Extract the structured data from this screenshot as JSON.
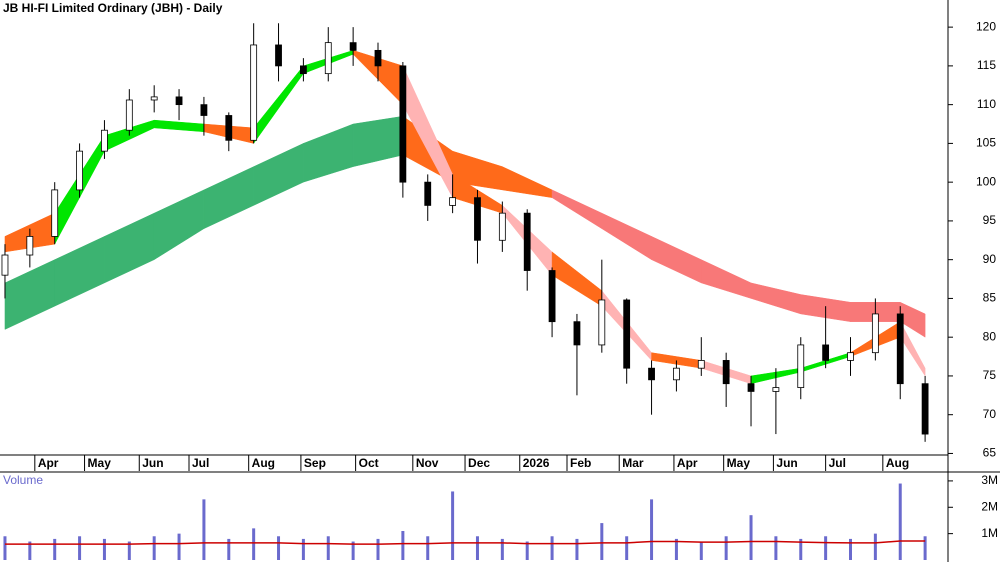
{
  "chart_data": [
    {
      "type": "candlestick",
      "title": "JB HI-FI Limited Ordinary (JBH) - Daily",
      "x": [
        0,
        10,
        20,
        30,
        40,
        50,
        60,
        70,
        80,
        90,
        100,
        110,
        120,
        130,
        140,
        150,
        160,
        170,
        180,
        190,
        200,
        210,
        220,
        230,
        240,
        250,
        260,
        270,
        280,
        290,
        300,
        310,
        320,
        330,
        340,
        350,
        360,
        370
      ],
      "open": [
        88,
        90.6,
        93,
        99,
        104,
        106.7,
        110.6,
        111,
        110,
        108.6,
        105.4,
        117.7,
        115,
        114,
        118,
        117,
        115,
        100,
        97,
        98,
        92.5,
        96,
        88.6,
        82,
        79,
        84.8,
        76,
        74.5,
        76,
        77,
        74,
        73,
        73.5,
        79,
        77,
        78,
        83,
        74
      ],
      "high": [
        92,
        94,
        100,
        105,
        108,
        112,
        112.5,
        112,
        111,
        109,
        120.5,
        120.5,
        116,
        120,
        120,
        118,
        115.5,
        101,
        101,
        99,
        97.5,
        96.5,
        89,
        83,
        90,
        85,
        77,
        77,
        80,
        78,
        75,
        76,
        80,
        84,
        80,
        85,
        84,
        75
      ],
      "low": [
        85,
        89,
        92,
        98,
        103,
        106,
        109,
        108,
        106,
        104,
        105,
        113,
        113,
        113,
        115,
        113,
        98,
        95,
        96,
        89.5,
        91,
        86,
        80,
        72.5,
        78,
        74,
        70,
        73,
        75,
        71,
        68.5,
        67.5,
        72,
        76,
        75,
        77,
        72,
        66.5
      ],
      "close": [
        90.6,
        93,
        99,
        104,
        106.7,
        110.6,
        111,
        110,
        108.6,
        105.4,
        117.7,
        115,
        114,
        118,
        117,
        115,
        100,
        97,
        98,
        92.5,
        96,
        88.6,
        82,
        79,
        84.8,
        76,
        74.5,
        76,
        77,
        74,
        73,
        73.5,
        79,
        77,
        78,
        83,
        74,
        67.5
      ],
      "bands": [
        {
          "x": [
            0,
            20,
            40,
            60,
            80,
            100,
            120,
            140,
            160,
            180,
            200,
            220,
            240,
            260,
            280,
            300,
            320,
            340,
            360,
            370
          ],
          "upper": [
            87,
            90,
            93,
            96,
            99,
            102,
            105,
            107.5,
            108.5,
            104,
            102,
            99,
            96,
            93,
            90,
            87,
            85.5,
            84.5,
            84.5,
            83
          ],
          "lower": [
            81,
            84,
            87,
            90,
            94,
            97,
            100,
            102,
            103.5,
            100,
            99,
            98,
            94,
            90,
            87,
            85,
            83,
            82,
            82,
            80
          ],
          "colors": [
            "#3cb371",
            "#3cb371",
            "#3cb371",
            "#3cb371",
            "#3cb371",
            "#3cb371",
            "#3cb371",
            "#3cb371",
            "#ff6a1a",
            "#ff6a1a",
            "#ff6a1a",
            "#f87878",
            "#f87878",
            "#f87878",
            "#f87878",
            "#f87878",
            "#f87878",
            "#f87878",
            "#f87878"
          ]
        },
        {
          "x": [
            0,
            20,
            40,
            60,
            80,
            100,
            120,
            140,
            160,
            180,
            200,
            220,
            240,
            260,
            280,
            300,
            320,
            340,
            360,
            370
          ],
          "upper": [
            93,
            96,
            106,
            108,
            107.5,
            107,
            115,
            117,
            115,
            101,
            97,
            91,
            86,
            78,
            77,
            75,
            76,
            78,
            82,
            76
          ],
          "lower": [
            91,
            92,
            104,
            107,
            106.5,
            105,
            114,
            116.5,
            110,
            98,
            96,
            88,
            84,
            77,
            76,
            74,
            75.5,
            77.5,
            80,
            75
          ],
          "colors": [
            "#ff6a1a",
            "#00e600",
            "#00e600",
            "#00e600",
            "#ff6a1a",
            "#00e600",
            "#00e600",
            "#ff6a1a",
            "#ffb3b3",
            "#ff6a1a",
            "#ffb3b3",
            "#ff6a1a",
            "#ffb3b3",
            "#ff6a1a",
            "#ffb3b3",
            "#00e600",
            "#00e600",
            "#ff6a1a",
            "#ffb3b3"
          ]
        }
      ],
      "xlim": [
        -2,
        378
      ],
      "xticks": [
        {
          "value": 12,
          "label": "Apr"
        },
        {
          "value": 32,
          "label": "May"
        },
        {
          "value": 54,
          "label": "Jun"
        },
        {
          "value": 74,
          "label": "Jul"
        },
        {
          "value": 98,
          "label": "Aug"
        },
        {
          "value": 119,
          "label": "Sep"
        },
        {
          "value": 141,
          "label": "Oct"
        },
        {
          "value": 164,
          "label": "Nov"
        },
        {
          "value": 185,
          "label": "Dec"
        },
        {
          "value": 207,
          "label": "2026"
        },
        {
          "value": 226,
          "label": "Feb"
        },
        {
          "value": 247,
          "label": "Mar"
        },
        {
          "value": 269,
          "label": "Apr"
        },
        {
          "value": 289,
          "label": "May"
        },
        {
          "value": 309,
          "label": "Jun"
        },
        {
          "value": 330,
          "label": "Jul"
        },
        {
          "value": 353,
          "label": "Aug"
        }
      ],
      "ylim": [
        64.8,
        123.5
      ],
      "yticks": [
        65,
        70,
        75,
        80,
        85,
        90,
        95,
        100,
        105,
        110,
        115,
        120
      ]
    },
    {
      "type": "bar",
      "title": "Volume",
      "color": "#6a6acd",
      "x": [
        0,
        10,
        20,
        30,
        40,
        50,
        60,
        70,
        80,
        90,
        100,
        110,
        120,
        130,
        140,
        150,
        160,
        170,
        180,
        190,
        200,
        210,
        220,
        230,
        240,
        250,
        260,
        270,
        280,
        290,
        300,
        310,
        320,
        330,
        340,
        350,
        360,
        370
      ],
      "values": [
        0.9,
        0.7,
        0.8,
        0.9,
        0.8,
        0.7,
        0.9,
        1.0,
        2.3,
        0.8,
        1.2,
        0.9,
        0.8,
        0.9,
        0.7,
        0.8,
        1.1,
        0.9,
        2.6,
        0.9,
        0.8,
        0.7,
        0.9,
        0.8,
        1.4,
        0.9,
        2.3,
        0.8,
        0.7,
        0.9,
        1.7,
        0.9,
        0.8,
        0.9,
        0.8,
        1.0,
        2.9,
        0.9
      ],
      "average": {
        "color": "#cc0000",
        "values": [
          0.6,
          0.6,
          0.6,
          0.6,
          0.6,
          0.6,
          0.62,
          0.62,
          0.65,
          0.65,
          0.65,
          0.65,
          0.62,
          0.62,
          0.6,
          0.6,
          0.62,
          0.62,
          0.65,
          0.65,
          0.65,
          0.62,
          0.62,
          0.62,
          0.65,
          0.65,
          0.7,
          0.7,
          0.68,
          0.68,
          0.7,
          0.7,
          0.68,
          0.66,
          0.65,
          0.65,
          0.72,
          0.72
        ]
      },
      "ylim": [
        0,
        3.3
      ],
      "yticks": [
        {
          "value": 1,
          "label": "1M"
        },
        {
          "value": 2,
          "label": "2M"
        },
        {
          "value": 3,
          "label": "3M"
        }
      ]
    }
  ]
}
